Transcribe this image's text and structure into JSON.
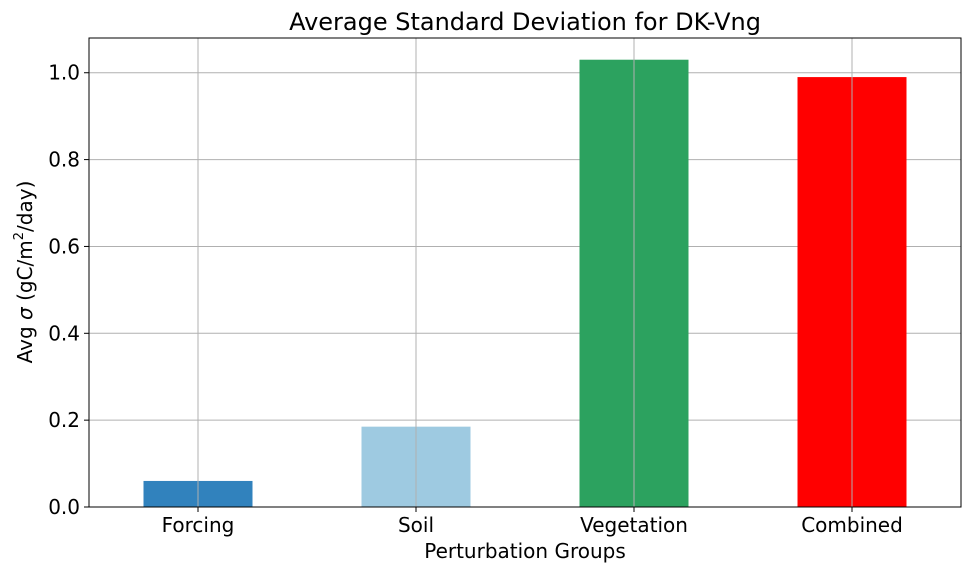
{
  "chart_data": {
    "type": "bar",
    "title": "Average Standard Deviation for DK-Vng",
    "xlabel": "Perturbation Groups",
    "ylabel": {
      "prefix": "Avg ",
      "sigma": "σ",
      "unit_open": " (gC/m",
      "superscript": "2",
      "unit_close": "/day)"
    },
    "categories": [
      "Forcing",
      "Soil",
      "Vegetation",
      "Combined"
    ],
    "values": [
      0.06,
      0.185,
      1.03,
      0.99
    ],
    "colors": [
      "#3182bd",
      "#9ecae1",
      "#2ca25f",
      "#ff0000"
    ],
    "ylim": [
      0,
      1.08
    ],
    "yticks": [
      "0.0",
      "0.2",
      "0.4",
      "0.6",
      "0.8",
      "1.0"
    ],
    "grid": true
  }
}
